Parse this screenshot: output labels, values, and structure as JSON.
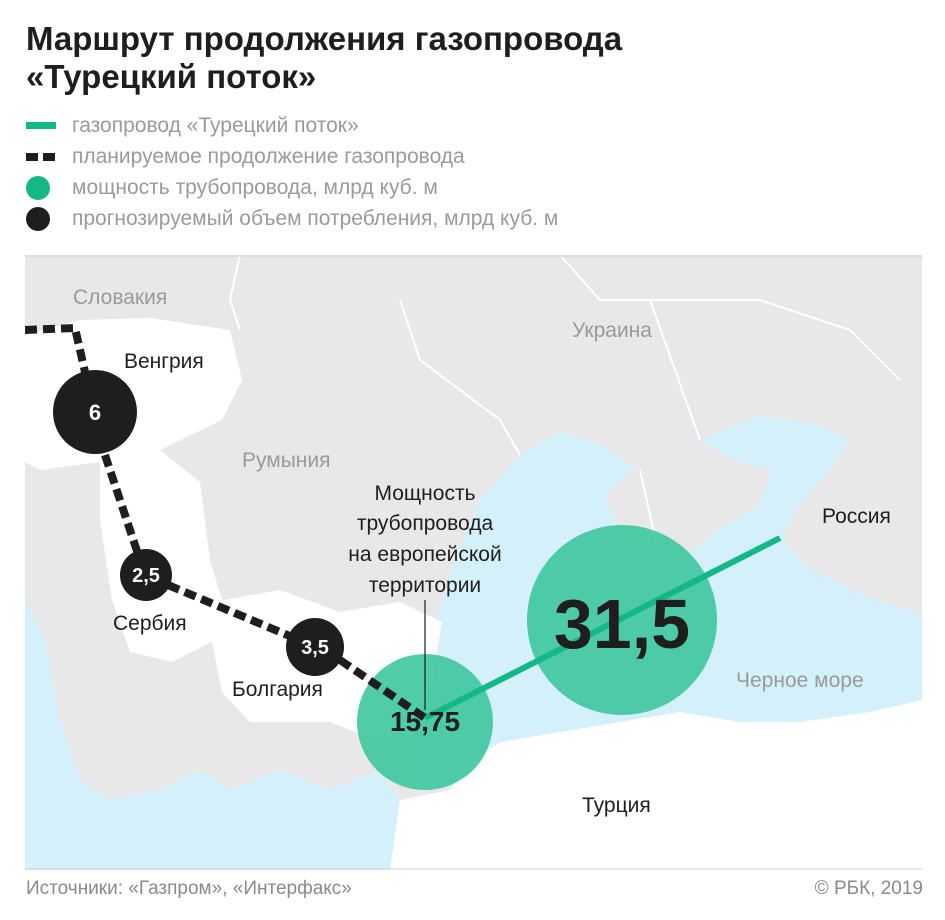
{
  "title": [
    "Маршрут продолжения газопровода",
    "«Турецкий поток»"
  ],
  "legend": [
    {
      "label": "газопровод «Турецкий поток»",
      "symbol": "green-line"
    },
    {
      "label": "планируемое продолжение газопровода",
      "symbol": "black-dashed-line"
    },
    {
      "label": "мощность трубопровода, млрд куб. м",
      "symbol": "green-circle"
    },
    {
      "label": "прогнозируемый объем потребления, млрд куб. м",
      "symbol": "black-circle"
    }
  ],
  "colors": {
    "pipeline": "#13b886",
    "capacity": "#3ec79f",
    "consumption": "#1e1e1e",
    "sea": "#d4f0fb",
    "land": "#e8e8e8",
    "route_countries": "#ffffff"
  },
  "map": {
    "countries": {
      "slovakia": "Словакия",
      "ukraine": "Украина",
      "hungary": "Венгрия",
      "romania": "Румыния",
      "serbia": "Сербия",
      "bulgaria": "Болгария",
      "russia": "Россия",
      "turkey": "Турция",
      "black_sea": "Черное море"
    },
    "consumption": {
      "hungary": "6",
      "serbia": "2,5",
      "bulgaria": "3,5"
    },
    "capacity": {
      "total": "31,5",
      "european": "15,75"
    },
    "annotation": [
      "Мощность",
      "трубопровода",
      "на европейской",
      "территории"
    ]
  },
  "footer": {
    "sources": "Источники: «Газпром», «Интерфакс»",
    "copyright": "© РБК, 2019"
  }
}
